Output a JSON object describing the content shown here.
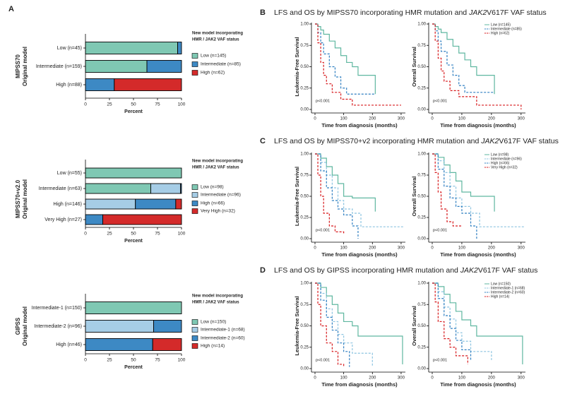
{
  "panels": [
    {
      "label": "A"
    },
    {
      "label": "B",
      "title": [
        "LFS and OS by MIPSS70 incorporating HMR mutation and ",
        "JAK2",
        "V617F VAF status"
      ]
    },
    {
      "label": "C",
      "title": [
        "LFS and OS by MIPSS70+v2 incorporating HMR mutation and ",
        "JAK2",
        "V617F VAF status"
      ]
    },
    {
      "label": "D",
      "title": [
        "LFS and OS by GIPSS incorporating HMR mutation and ",
        "JAK2",
        "V617F VAF status"
      ]
    }
  ],
  "chart_data": [
    {
      "type": "stacked_barh",
      "ytitle": [
        "MIPSS70",
        "Original model"
      ],
      "categories": [
        "Low (n=45)",
        "Intermediate (n=159)",
        "High (n=88)"
      ],
      "series": [
        {
          "name": "Low (n=145)",
          "color": "#7fc8b3",
          "values": [
            96,
            64,
            0
          ]
        },
        {
          "name": "Intermediate (n=85)",
          "color": "#3d89c4",
          "values": [
            4,
            36,
            30
          ]
        },
        {
          "name": "High (n=62)",
          "color": "#d42a2a",
          "values": [
            0,
            0,
            70
          ]
        }
      ],
      "xlim": [
        0,
        100
      ],
      "xticks": [
        0,
        25,
        50,
        75,
        100
      ],
      "xlabel": "Percent",
      "legend_title": [
        "New model incorporating",
        "HMR / JAK2 VAF status"
      ]
    },
    {
      "type": "stacked_barh",
      "ytitle": [
        "MIPSS70+v2.0",
        "Original model"
      ],
      "categories": [
        "Low (n=55)",
        "Intermediate (n=63)",
        "High (n=146)",
        "Very High (n=27)"
      ],
      "series": [
        {
          "name": "Low (n=98)",
          "color": "#7fc8b3",
          "values": [
            100,
            68,
            0,
            0
          ]
        },
        {
          "name": "Intermediate (n=96)",
          "color": "#a6cde6",
          "values": [
            0,
            31,
            52,
            0
          ]
        },
        {
          "name": "High (n=66)",
          "color": "#3d89c4",
          "values": [
            0,
            1,
            42,
            18
          ]
        },
        {
          "name": "Very High (n=32)",
          "color": "#d42a2a",
          "values": [
            0,
            0,
            6,
            82
          ]
        }
      ],
      "xlim": [
        0,
        100
      ],
      "xticks": [
        0,
        25,
        50,
        75,
        100
      ],
      "xlabel": "Percent",
      "legend_title": [
        "New model incorporating",
        "HMR / JAK2 VAF status"
      ]
    },
    {
      "type": "stacked_barh",
      "ytitle": [
        "GIPSS",
        "Original model"
      ],
      "categories": [
        "Intermediate-1 (n=150)",
        "Intermediate-2 (n=96)",
        "High (n=46)"
      ],
      "series": [
        {
          "name": "Low (n=150)",
          "color": "#7fc8b3",
          "values": [
            100,
            0,
            0
          ]
        },
        {
          "name": "Intermediate-1 (n=68)",
          "color": "#a6cde6",
          "values": [
            0,
            71,
            0
          ]
        },
        {
          "name": "Intermediate-2 (n=60)",
          "color": "#3d89c4",
          "values": [
            0,
            29,
            70
          ]
        },
        {
          "name": "High (n=14)",
          "color": "#d42a2a",
          "values": [
            0,
            0,
            30
          ]
        }
      ],
      "xlim": [
        0,
        100
      ],
      "xticks": [
        0,
        25,
        50,
        75,
        100
      ],
      "xlabel": "Percent",
      "legend_title": [
        "New model incorporating",
        "HMR / JAK2 VAF status"
      ]
    },
    {
      "type": "km",
      "ylabel": "Leukemia-Free Survival",
      "xlabel": "Time from diagnosis (months)",
      "pvalue": "p<0.001",
      "xlim": [
        0,
        310
      ],
      "ylim": [
        0,
        1
      ],
      "xticks": [
        0,
        100,
        200,
        300
      ],
      "yticks": [
        {
          "value": 0,
          "label": "0.00"
        },
        {
          "value": 0.25,
          "label": "0.25"
        },
        {
          "value": 0.5,
          "label": "0.50"
        },
        {
          "value": 0.75,
          "label": "0.75"
        },
        {
          "value": 1,
          "label": "1.00"
        }
      ],
      "series": [
        {
          "color": "#5fb7a0",
          "linestyle": "solid",
          "x": [
            0,
            10,
            20,
            30,
            50,
            70,
            90,
            110,
            130,
            150,
            210
          ],
          "values": [
            1,
            0.97,
            0.93,
            0.88,
            0.8,
            0.72,
            0.63,
            0.55,
            0.5,
            0.4,
            0.18
          ]
        },
        {
          "color": "#2f7fc1",
          "linestyle": "dashed",
          "x": [
            0,
            10,
            20,
            30,
            50,
            70,
            90,
            110,
            210
          ],
          "values": [
            1,
            0.9,
            0.78,
            0.65,
            0.5,
            0.38,
            0.25,
            0.18,
            0.18
          ]
        },
        {
          "color": "#d7191c",
          "linestyle": "dashed",
          "x": [
            0,
            10,
            20,
            30,
            40,
            60,
            90,
            130,
            300
          ],
          "values": [
            1,
            0.78,
            0.55,
            0.4,
            0.3,
            0.2,
            0.12,
            0.05,
            0.05
          ]
        }
      ]
    },
    {
      "type": "km",
      "ylabel": "Overall Survival",
      "xlabel": "Time from diagnosis (months)",
      "pvalue": "p<0.001",
      "xlim": [
        0,
        310
      ],
      "ylim": [
        0,
        1
      ],
      "xticks": [
        0,
        100,
        200,
        300
      ],
      "yticks": [
        {
          "value": 0,
          "label": "0.00"
        },
        {
          "value": 0.25,
          "label": "0.25"
        },
        {
          "value": 0.5,
          "label": "0.50"
        },
        {
          "value": 0.75,
          "label": "0.75"
        },
        {
          "value": 1,
          "label": "1.00"
        }
      ],
      "series": [
        {
          "name": "Low (n=145)",
          "color": "#5fb7a0",
          "linestyle": "solid",
          "x": [
            0,
            10,
            20,
            30,
            50,
            70,
            90,
            110,
            130,
            150,
            210
          ],
          "values": [
            1,
            0.97,
            0.94,
            0.9,
            0.82,
            0.74,
            0.66,
            0.58,
            0.5,
            0.4,
            0.18
          ]
        },
        {
          "name": "Intermediate (n=85)",
          "color": "#2f7fc1",
          "linestyle": "dashed",
          "x": [
            0,
            10,
            20,
            30,
            50,
            70,
            90,
            110,
            210
          ],
          "values": [
            1,
            0.92,
            0.8,
            0.68,
            0.52,
            0.4,
            0.28,
            0.2,
            0.2
          ]
        },
        {
          "name": "High (n=62)",
          "color": "#d7191c",
          "linestyle": "dashed",
          "x": [
            0,
            10,
            20,
            30,
            40,
            60,
            90,
            150,
            300
          ],
          "values": [
            1,
            0.8,
            0.6,
            0.45,
            0.33,
            0.22,
            0.15,
            0.05,
            0
          ]
        }
      ]
    },
    {
      "type": "km",
      "ylabel": "Leukemia-Free Survival",
      "xlabel": "Time from diagnosis (months)",
      "pvalue": "p<0.001",
      "xlim": [
        0,
        310
      ],
      "ylim": [
        0,
        1
      ],
      "xticks": [
        0,
        100,
        200,
        300
      ],
      "yticks": [
        {
          "value": 0,
          "label": "0.00"
        },
        {
          "value": 0.25,
          "label": "0.25"
        },
        {
          "value": 0.5,
          "label": "0.50"
        },
        {
          "value": 0.75,
          "label": "0.75"
        },
        {
          "value": 1,
          "label": "1.00"
        }
      ],
      "series": [
        {
          "color": "#5fb7a0",
          "linestyle": "solid",
          "x": [
            0,
            20,
            40,
            60,
            80,
            100,
            130,
            200,
            210
          ],
          "values": [
            1,
            0.95,
            0.85,
            0.75,
            0.65,
            0.5,
            0.48,
            0.48,
            0.32
          ]
        },
        {
          "color": "#8cc4e0",
          "linestyle": "dashed",
          "x": [
            0,
            20,
            40,
            60,
            80,
            100,
            130,
            160,
            310
          ],
          "values": [
            1,
            0.9,
            0.75,
            0.6,
            0.45,
            0.35,
            0.3,
            0.14,
            0.14
          ]
        },
        {
          "color": "#2f7fc1",
          "linestyle": "dashed",
          "x": [
            0,
            20,
            40,
            60,
            80,
            100,
            130,
            150
          ],
          "values": [
            1,
            0.8,
            0.6,
            0.45,
            0.35,
            0.28,
            0.15,
            0
          ]
        },
        {
          "color": "#d7191c",
          "linestyle": "dashed",
          "x": [
            0,
            10,
            20,
            30,
            50,
            70,
            100
          ],
          "values": [
            1,
            0.75,
            0.5,
            0.3,
            0.15,
            0.08,
            0.05
          ]
        }
      ]
    },
    {
      "type": "km",
      "ylabel": "Overall Survival",
      "xlabel": "Time from diagnosis (months)",
      "pvalue": "p<0.001",
      "xlim": [
        0,
        310
      ],
      "ylim": [
        0,
        1
      ],
      "xticks": [
        0,
        100,
        200,
        300
      ],
      "yticks": [
        {
          "value": 0,
          "label": "0.00"
        },
        {
          "value": 0.25,
          "label": "0.25"
        },
        {
          "value": 0.5,
          "label": "0.50"
        },
        {
          "value": 0.75,
          "label": "0.75"
        },
        {
          "value": 1,
          "label": "1.00"
        }
      ],
      "series": [
        {
          "name": "Low (n=98)",
          "color": "#5fb7a0",
          "linestyle": "solid",
          "x": [
            0,
            20,
            40,
            60,
            80,
            100,
            130,
            200,
            210
          ],
          "values": [
            1,
            0.96,
            0.87,
            0.78,
            0.68,
            0.55,
            0.5,
            0.5,
            0.32
          ]
        },
        {
          "name": "Intermediate (n=96)",
          "color": "#8cc4e0",
          "linestyle": "dashed",
          "x": [
            0,
            20,
            40,
            60,
            80,
            100,
            130,
            160,
            310
          ],
          "values": [
            1,
            0.92,
            0.78,
            0.62,
            0.48,
            0.38,
            0.3,
            0.14,
            0.14
          ]
        },
        {
          "name": "High (n=66)",
          "color": "#2f7fc1",
          "linestyle": "dashed",
          "x": [
            0,
            20,
            40,
            60,
            80,
            100,
            130,
            150
          ],
          "values": [
            1,
            0.82,
            0.62,
            0.48,
            0.38,
            0.3,
            0.15,
            0
          ]
        },
        {
          "name": "Very High (n=32)",
          "color": "#d7191c",
          "linestyle": "dashed",
          "x": [
            0,
            10,
            20,
            30,
            50,
            70,
            100
          ],
          "values": [
            1,
            0.78,
            0.55,
            0.35,
            0.2,
            0.15,
            0.15
          ]
        }
      ]
    },
    {
      "type": "km",
      "ylabel": "Leukemia-Free Survival",
      "xlabel": "Time from diagnosis (months)",
      "pvalue": "p<0.001",
      "xlim": [
        0,
        310
      ],
      "ylim": [
        0,
        1
      ],
      "xticks": [
        0,
        100,
        200,
        300
      ],
      "yticks": [
        {
          "value": 0,
          "label": "0.00"
        },
        {
          "value": 0.25,
          "label": "0.25"
        },
        {
          "value": 0.5,
          "label": "0.50"
        },
        {
          "value": 0.75,
          "label": "0.75"
        },
        {
          "value": 1,
          "label": "1.00"
        }
      ],
      "series": [
        {
          "color": "#5fb7a0",
          "linestyle": "solid",
          "x": [
            0,
            20,
            40,
            60,
            80,
            100,
            130,
            150,
            300,
            305
          ],
          "values": [
            1,
            0.95,
            0.85,
            0.75,
            0.65,
            0.55,
            0.5,
            0.38,
            0.38,
            0.05
          ]
        },
        {
          "color": "#8cc4e0",
          "linestyle": "dashed",
          "x": [
            0,
            20,
            40,
            60,
            80,
            100,
            130,
            200
          ],
          "values": [
            1,
            0.88,
            0.7,
            0.55,
            0.4,
            0.3,
            0.18,
            0.02
          ]
        },
        {
          "color": "#2f7fc1",
          "linestyle": "dashed",
          "x": [
            0,
            20,
            40,
            60,
            80,
            100,
            120
          ],
          "values": [
            1,
            0.8,
            0.6,
            0.45,
            0.3,
            0.2,
            0.02
          ]
        },
        {
          "color": "#d7191c",
          "linestyle": "dashed",
          "x": [
            0,
            10,
            20,
            40,
            60,
            80,
            100
          ],
          "values": [
            1,
            0.75,
            0.5,
            0.3,
            0.2,
            0.05,
            0.03
          ]
        }
      ]
    },
    {
      "type": "km",
      "ylabel": "Overall Survival",
      "xlabel": "Time from diagnosis (months)",
      "pvalue": "p<0.001",
      "xlim": [
        0,
        310
      ],
      "ylim": [
        0,
        1
      ],
      "xticks": [
        0,
        100,
        200,
        300
      ],
      "yticks": [
        {
          "value": 0,
          "label": "0.00"
        },
        {
          "value": 0.25,
          "label": "0.25"
        },
        {
          "value": 0.5,
          "label": "0.50"
        },
        {
          "value": 0.75,
          "label": "0.75"
        },
        {
          "value": 1,
          "label": "1.00"
        }
      ],
      "series": [
        {
          "name": "Low (n=150)",
          "color": "#5fb7a0",
          "linestyle": "solid",
          "x": [
            0,
            20,
            40,
            60,
            80,
            100,
            130,
            150,
            300,
            305
          ],
          "values": [
            1,
            0.96,
            0.87,
            0.77,
            0.67,
            0.57,
            0.5,
            0.38,
            0.38,
            0.05
          ]
        },
        {
          "name": "Intermediate-1 (n=68)",
          "color": "#8cc4e0",
          "linestyle": "dashed",
          "x": [
            0,
            20,
            40,
            60,
            80,
            100,
            130,
            200
          ],
          "values": [
            1,
            0.9,
            0.72,
            0.58,
            0.42,
            0.32,
            0.2,
            0.1
          ]
        },
        {
          "name": "Intermediate-2 (n=60)",
          "color": "#2f7fc1",
          "linestyle": "dashed",
          "x": [
            0,
            20,
            40,
            60,
            80,
            100,
            130
          ],
          "values": [
            1,
            0.82,
            0.62,
            0.47,
            0.33,
            0.22,
            0.1
          ]
        },
        {
          "name": "High (n=14)",
          "color": "#d7191c",
          "linestyle": "dashed",
          "x": [
            0,
            10,
            20,
            40,
            60,
            80,
            120
          ],
          "values": [
            1,
            0.78,
            0.55,
            0.35,
            0.25,
            0.15,
            0.05
          ]
        }
      ]
    }
  ]
}
